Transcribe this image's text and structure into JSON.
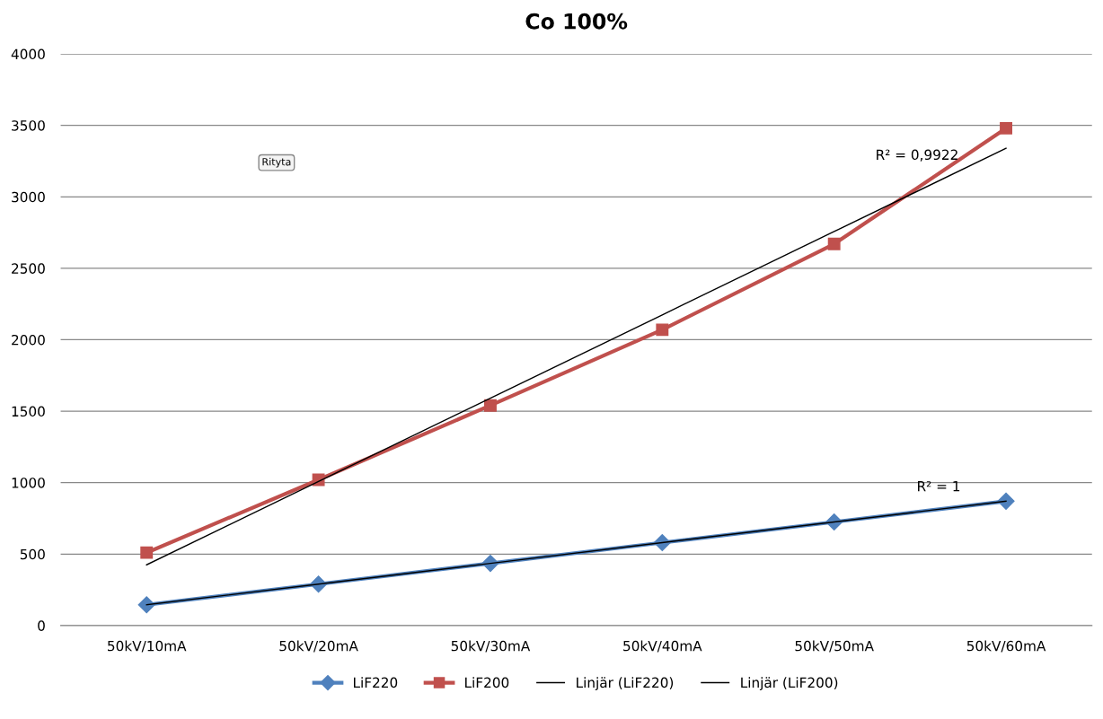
{
  "chart_data": {
    "type": "line",
    "title": "Co 100%",
    "categories": [
      "50kV/10mA",
      "50kV/20mA",
      "50kV/30mA",
      "50kV/40mA",
      "50kV/50mA",
      "50kV/60mA"
    ],
    "series": [
      {
        "name": "LiF220",
        "color": "#4f81bd",
        "values": [
          145,
          290,
          435,
          580,
          725,
          870
        ],
        "marker": "diamond"
      },
      {
        "name": "LiF200",
        "color": "#c0504d",
        "values": [
          510,
          1020,
          1540,
          2070,
          2670,
          3480
        ],
        "marker": "square"
      },
      {
        "name": "Linjär (LiF220)",
        "color": "#000000",
        "values": [
          145,
          290,
          435,
          580,
          725,
          870
        ],
        "marker": "none"
      },
      {
        "name": "Linjär (LiF200)",
        "color": "#000000",
        "values": [
          425,
          1008,
          1591,
          2174,
          2757,
          3340
        ],
        "marker": "none"
      }
    ],
    "ylim": [
      0,
      4000
    ],
    "yticks": [
      0,
      500,
      1000,
      1500,
      2000,
      2500,
      3000,
      3500,
      4000
    ],
    "grid": "y",
    "legend": "bottom",
    "annotations": [
      "R² = 0,9922",
      "R² = 1",
      "Rityta"
    ]
  }
}
